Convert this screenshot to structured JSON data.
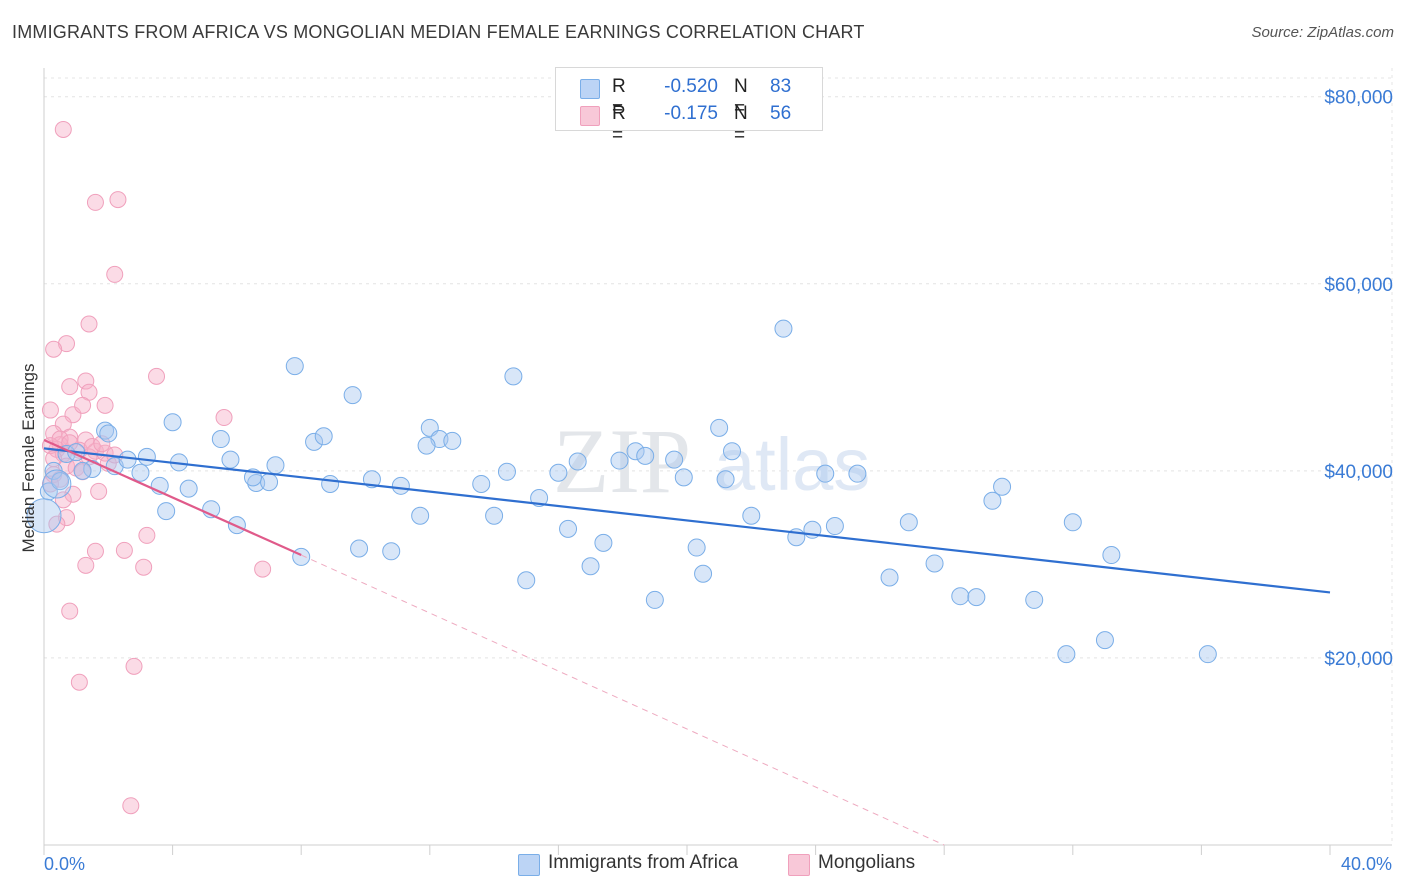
{
  "title": "IMMIGRANTS FROM AFRICA VS MONGOLIAN MEDIAN FEMALE EARNINGS CORRELATION CHART",
  "source": "Source: ZipAtlas.com",
  "watermark": {
    "zip": "ZIP",
    "atlas": "atlas"
  },
  "legend": {
    "r_label": "R =",
    "n_label": "N =",
    "series": [
      {
        "name": "Immigrants from Africa",
        "r": "-0.520",
        "n": "83",
        "color": "#7aaee8",
        "fill": "#bcd4f5"
      },
      {
        "name": "Mongolians",
        "r": "-0.175",
        "n": "56",
        "color": "#f0a0bc",
        "fill": "#f8c8d8"
      }
    ]
  },
  "chart_data": {
    "type": "scatter",
    "title": "IMMIGRANTS FROM AFRICA VS MONGOLIAN MEDIAN FEMALE EARNINGS CORRELATION CHART",
    "ylabel": "Median Female Earnings",
    "xlabel": "",
    "xlim": [
      0,
      40
    ],
    "ylim": [
      0,
      82000
    ],
    "x_tick_labels": [
      "0.0%",
      "40.0%"
    ],
    "y_ticks": [
      20000,
      40000,
      60000,
      80000
    ],
    "y_tick_labels": [
      "$20,000",
      "$40,000",
      "$60,000",
      "$80,000"
    ],
    "grid": true,
    "series": [
      {
        "name": "Immigrants from Africa",
        "color": "#3a7bd5",
        "points": [
          [
            0.3,
            40000
          ],
          [
            0.7,
            41800
          ],
          [
            1.0,
            42000
          ],
          [
            1.5,
            40200
          ],
          [
            1.9,
            44300
          ],
          [
            2.2,
            40500
          ],
          [
            2.6,
            41200
          ],
          [
            3.0,
            39800
          ],
          [
            3.6,
            38400
          ],
          [
            3.8,
            35700
          ],
          [
            4.2,
            40900
          ],
          [
            4.5,
            38100
          ],
          [
            4.0,
            45200
          ],
          [
            5.2,
            35900
          ],
          [
            5.5,
            43400
          ],
          [
            5.8,
            41200
          ],
          [
            6.0,
            34200
          ],
          [
            6.6,
            38700
          ],
          [
            7.0,
            38800
          ],
          [
            7.2,
            40600
          ],
          [
            7.8,
            51200
          ],
          [
            8.0,
            30800
          ],
          [
            8.4,
            43100
          ],
          [
            8.7,
            43700
          ],
          [
            8.9,
            38600
          ],
          [
            9.6,
            48100
          ],
          [
            9.8,
            31700
          ],
          [
            10.2,
            39100
          ],
          [
            10.8,
            31400
          ],
          [
            11.1,
            38400
          ],
          [
            11.7,
            35200
          ],
          [
            12.0,
            44600
          ],
          [
            12.3,
            43400
          ],
          [
            12.7,
            43200
          ],
          [
            13.6,
            38600
          ],
          [
            14.0,
            35200
          ],
          [
            14.4,
            39900
          ],
          [
            14.6,
            50100
          ],
          [
            15.0,
            28300
          ],
          [
            15.4,
            37100
          ],
          [
            16.0,
            39800
          ],
          [
            16.3,
            33800
          ],
          [
            16.6,
            41000
          ],
          [
            17.0,
            29800
          ],
          [
            17.4,
            32300
          ],
          [
            17.9,
            41100
          ],
          [
            18.4,
            42100
          ],
          [
            18.7,
            41600
          ],
          [
            19.0,
            26200
          ],
          [
            19.6,
            41200
          ],
          [
            19.9,
            39300
          ],
          [
            20.3,
            31800
          ],
          [
            20.5,
            29000
          ],
          [
            21.0,
            44600
          ],
          [
            21.2,
            39100
          ],
          [
            21.4,
            42100
          ],
          [
            22.0,
            35200
          ],
          [
            23.0,
            55200
          ],
          [
            23.4,
            32900
          ],
          [
            23.9,
            33700
          ],
          [
            24.3,
            39700
          ],
          [
            24.6,
            34100
          ],
          [
            25.3,
            39700
          ],
          [
            26.3,
            28600
          ],
          [
            26.9,
            34500
          ],
          [
            27.7,
            30100
          ],
          [
            28.5,
            26600
          ],
          [
            29.0,
            26500
          ],
          [
            29.5,
            36800
          ],
          [
            29.8,
            38300
          ],
          [
            30.8,
            26200
          ],
          [
            31.8,
            20400
          ],
          [
            32.0,
            34500
          ],
          [
            33.0,
            21900
          ],
          [
            33.2,
            31000
          ],
          [
            36.2,
            20400
          ],
          [
            0.15,
            37800
          ],
          [
            0.5,
            38900
          ],
          [
            1.2,
            40000
          ],
          [
            2.0,
            44000
          ],
          [
            3.2,
            41500
          ],
          [
            6.5,
            39300
          ],
          [
            11.9,
            42700
          ]
        ],
        "trend": [
          [
            0.0,
            42400
          ],
          [
            40.0,
            27000
          ]
        ]
      },
      {
        "name": "Mongolians",
        "color": "#e05a8a",
        "points": [
          [
            0.6,
            76500
          ],
          [
            1.6,
            68700
          ],
          [
            2.3,
            69000
          ],
          [
            2.2,
            61000
          ],
          [
            1.4,
            55700
          ],
          [
            0.7,
            53600
          ],
          [
            0.3,
            53000
          ],
          [
            3.5,
            50100
          ],
          [
            0.8,
            49000
          ],
          [
            1.3,
            49600
          ],
          [
            1.4,
            48400
          ],
          [
            0.2,
            46500
          ],
          [
            0.9,
            46000
          ],
          [
            1.2,
            47000
          ],
          [
            1.9,
            47000
          ],
          [
            5.6,
            45700
          ],
          [
            0.6,
            45000
          ],
          [
            0.3,
            44000
          ],
          [
            0.8,
            43600
          ],
          [
            1.3,
            43300
          ],
          [
            0.5,
            42800
          ],
          [
            0.4,
            42300
          ],
          [
            1.1,
            42200
          ],
          [
            1.6,
            42100
          ],
          [
            1.9,
            41900
          ],
          [
            0.2,
            42700
          ],
          [
            0.6,
            41800
          ],
          [
            1.4,
            41500
          ],
          [
            2.0,
            40800
          ],
          [
            0.7,
            40500
          ],
          [
            1.0,
            40300
          ],
          [
            0.3,
            39600
          ],
          [
            0.5,
            39100
          ],
          [
            0.2,
            38600
          ],
          [
            0.9,
            37500
          ],
          [
            1.7,
            37800
          ],
          [
            0.6,
            36900
          ],
          [
            0.7,
            35000
          ],
          [
            0.4,
            34300
          ],
          [
            3.2,
            33100
          ],
          [
            1.6,
            31400
          ],
          [
            2.5,
            31500
          ],
          [
            1.3,
            29900
          ],
          [
            3.1,
            29700
          ],
          [
            6.8,
            29500
          ],
          [
            0.8,
            25000
          ],
          [
            2.8,
            19100
          ],
          [
            1.1,
            17400
          ],
          [
            2.7,
            4200
          ],
          [
            0.5,
            43400
          ],
          [
            1.5,
            42600
          ],
          [
            0.3,
            41300
          ],
          [
            2.2,
            41700
          ],
          [
            0.8,
            43000
          ],
          [
            1.2,
            39900
          ],
          [
            1.8,
            42900
          ]
        ],
        "trend_solid": [
          [
            0.0,
            43300
          ],
          [
            8.0,
            31000
          ]
        ],
        "trend_dashed": [
          [
            8.0,
            31000
          ],
          [
            28.0,
            0
          ]
        ]
      }
    ]
  }
}
